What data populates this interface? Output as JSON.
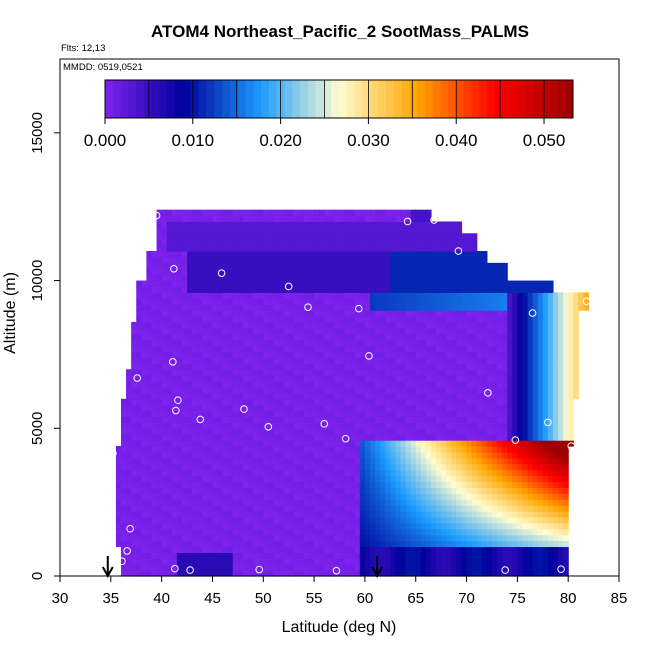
{
  "chart_data": {
    "type": "heatmap",
    "title": "ATOM4 Northeast_Pacific_2 SootMass_PALMS",
    "flights_note": "Flts: 12,13",
    "date_note": "MMDD: 0519,0521",
    "xlabel": "Latitude (deg N)",
    "ylabel": "Altitude (m)",
    "xlim": [
      30,
      85
    ],
    "ylim": [
      0,
      17500
    ],
    "xticks": [
      30,
      35,
      40,
      45,
      50,
      55,
      60,
      65,
      70,
      75,
      80,
      85
    ],
    "yticks": [
      0,
      5000,
      10000,
      15000
    ],
    "grid": false,
    "colorbar": {
      "placement": "top-inside",
      "range": [
        0,
        0.0533
      ],
      "ticks": [
        "0.000",
        "0.010",
        "0.020",
        "0.030",
        "0.040",
        "0.050"
      ],
      "tick_values": [
        0,
        0.01,
        0.02,
        0.03,
        0.04,
        0.05
      ],
      "colors": [
        "#7f22ee",
        "#00009b",
        "#1c9cff",
        "#fffdd0",
        "#ffa500",
        "#ff0000",
        "#9b0000"
      ]
    },
    "regions": [
      {
        "lat": [
          36,
          59.5
        ],
        "alt": [
          0,
          12400
        ],
        "value": 0.0
      },
      {
        "lat": [
          40,
          46
        ],
        "alt": [
          10400,
          11400
        ],
        "value": 0.006,
        "note": "upper band"
      },
      {
        "lat": [
          40,
          55
        ],
        "alt": [
          11400,
          12000
        ],
        "value": 0.003
      },
      {
        "lat": [
          59.5,
          80
        ],
        "alt": [
          0,
          1000
        ],
        "value": 0.008
      },
      {
        "lat": [
          59.5,
          80
        ],
        "alt": [
          1000,
          4400
        ],
        "value": 0.02,
        "note": "gradient increasing with latitude"
      },
      {
        "lat": [
          74,
          80
        ],
        "alt": [
          3000,
          4400
        ],
        "value": 0.05,
        "note": "maximum"
      },
      {
        "lat": [
          74,
          82
        ],
        "alt": [
          4500,
          9500
        ],
        "value": 0.02,
        "note": "high-latitude edge"
      }
    ],
    "flight_markers_latitude": [
      34.7,
      61.2
    ],
    "sample_points": [
      {
        "lat": 39.5,
        "alt": 12200
      },
      {
        "lat": 64.2,
        "alt": 12000
      },
      {
        "lat": 66.8,
        "alt": 12050
      },
      {
        "lat": 69.2,
        "alt": 11000
      },
      {
        "lat": 41.2,
        "alt": 10400
      },
      {
        "lat": 45.9,
        "alt": 10250
      },
      {
        "lat": 52.5,
        "alt": 9800
      },
      {
        "lat": 54.4,
        "alt": 9100
      },
      {
        "lat": 59.4,
        "alt": 9050
      },
      {
        "lat": 76.5,
        "alt": 8900
      },
      {
        "lat": 81.8,
        "alt": 9300
      },
      {
        "lat": 41.1,
        "alt": 7250
      },
      {
        "lat": 60.4,
        "alt": 7450
      },
      {
        "lat": 37.6,
        "alt": 6700
      },
      {
        "lat": 72.1,
        "alt": 6200
      },
      {
        "lat": 41.6,
        "alt": 5950
      },
      {
        "lat": 41.4,
        "alt": 5600
      },
      {
        "lat": 48.1,
        "alt": 5650
      },
      {
        "lat": 43.8,
        "alt": 5300
      },
      {
        "lat": 50.5,
        "alt": 5050
      },
      {
        "lat": 56.0,
        "alt": 5150
      },
      {
        "lat": 78.0,
        "alt": 5200
      },
      {
        "lat": 58.1,
        "alt": 4650
      },
      {
        "lat": 74.8,
        "alt": 4600
      },
      {
        "lat": 80.3,
        "alt": 4400
      },
      {
        "lat": 35.2,
        "alt": 4150
      },
      {
        "lat": 36.9,
        "alt": 1600
      },
      {
        "lat": 36.6,
        "alt": 850
      },
      {
        "lat": 36.1,
        "alt": 500
      },
      {
        "lat": 41.3,
        "alt": 250
      },
      {
        "lat": 42.8,
        "alt": 200
      },
      {
        "lat": 49.6,
        "alt": 220
      },
      {
        "lat": 57.2,
        "alt": 180
      },
      {
        "lat": 73.8,
        "alt": 200
      },
      {
        "lat": 79.3,
        "alt": 230
      }
    ]
  }
}
